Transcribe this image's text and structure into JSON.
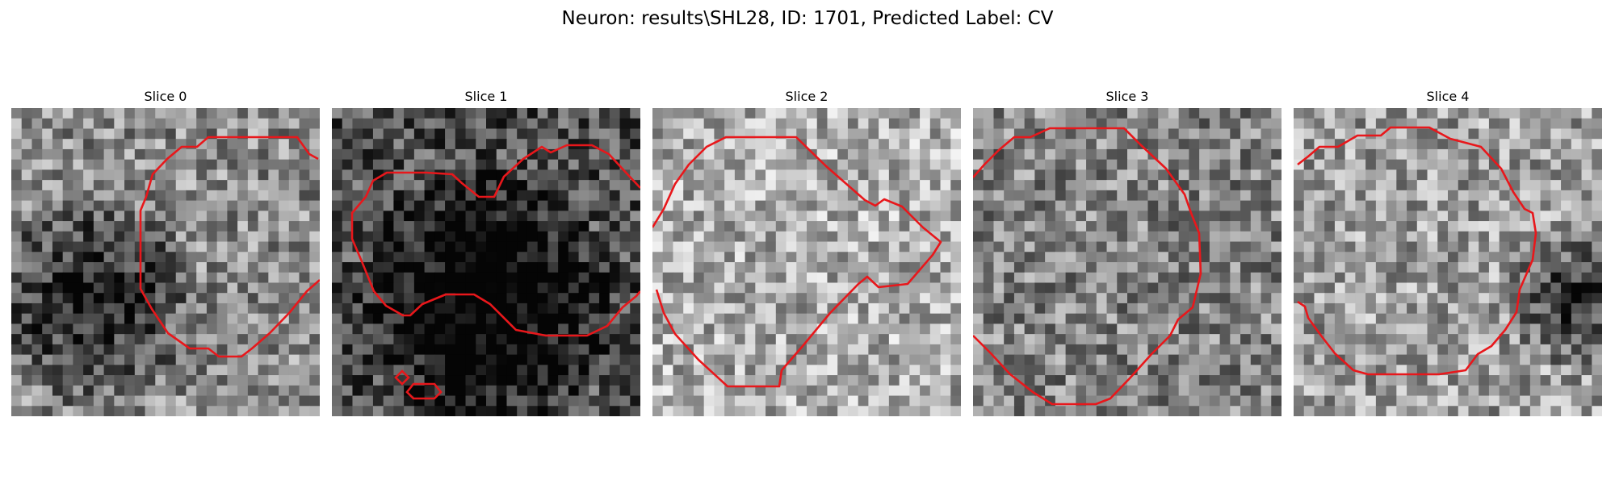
{
  "figure": {
    "title": "Neuron: results\\SHL28, ID: 1701, Predicted Label: CV"
  },
  "panels": [
    {
      "title": "Slice 0",
      "seed": 11,
      "dark_center": [
        0.26,
        0.62
      ],
      "dark_radius": 0.34,
      "base": 0.55
    },
    {
      "title": "Slice 1",
      "seed": 23,
      "dark_center": [
        0.5,
        0.62
      ],
      "dark_radius": 0.42,
      "base": 0.32
    },
    {
      "title": "Slice 2",
      "seed": 37,
      "dark_center": [
        0.5,
        0.5
      ],
      "dark_radius": 0.0,
      "base": 0.68
    },
    {
      "title": "Slice 3",
      "seed": 41,
      "dark_center": [
        0.5,
        0.5
      ],
      "dark_radius": 0.0,
      "base": 0.52
    },
    {
      "title": "Slice 4",
      "seed": 53,
      "dark_center": [
        0.92,
        0.62
      ],
      "dark_radius": 0.22,
      "base": 0.62
    }
  ],
  "colors": {
    "contour": "#e8171b",
    "background": "#ffffff"
  }
}
